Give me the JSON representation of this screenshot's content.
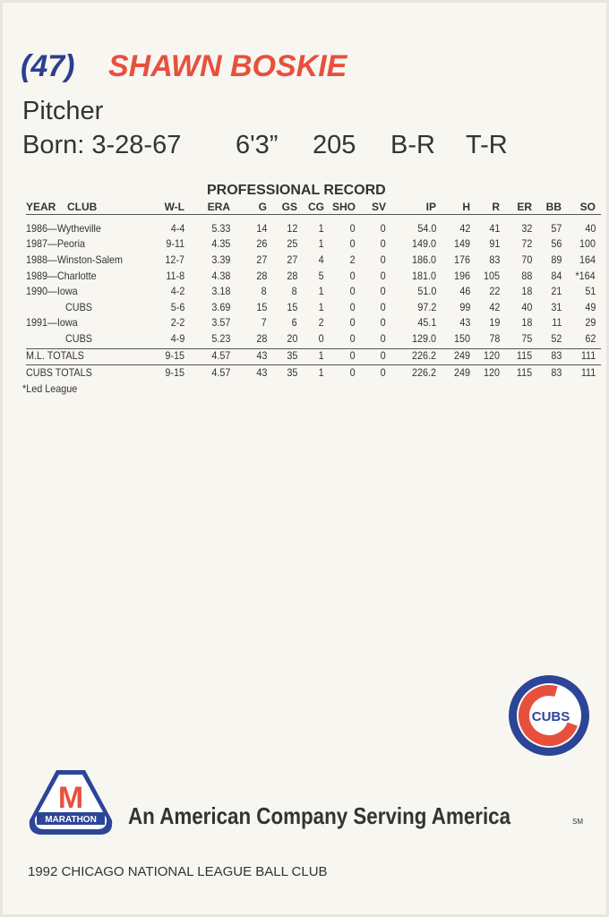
{
  "header": {
    "number": "(47)",
    "name": "SHAWN BOSKIE",
    "position": "Pitcher",
    "born": "Born: 3-28-67",
    "height": "6'3”",
    "weight": "205",
    "bats": "B-R",
    "throws": "T-R"
  },
  "table": {
    "title": "PROFESSIONAL RECORD",
    "headers": [
      "YEAR",
      "CLUB",
      "W-L",
      "ERA",
      "G",
      "GS",
      "CG",
      "SHO",
      "SV",
      "IP",
      "H",
      "R",
      "ER",
      "BB",
      "SO"
    ],
    "rows": [
      [
        "1986—Wytheville",
        "4-4",
        "5.33",
        "14",
        "12",
        "1",
        "0",
        "0",
        "54.0",
        "42",
        "41",
        "32",
        "57",
        "40"
      ],
      [
        "1987—Peoria",
        "9-11",
        "4.35",
        "26",
        "25",
        "1",
        "0",
        "0",
        "149.0",
        "149",
        "91",
        "72",
        "56",
        "100"
      ],
      [
        "1988—Winston-Salem",
        "12-7",
        "3.39",
        "27",
        "27",
        "4",
        "2",
        "0",
        "186.0",
        "176",
        "83",
        "70",
        "89",
        "164"
      ],
      [
        "1989—Charlotte",
        "11-8",
        "4.38",
        "28",
        "28",
        "5",
        "0",
        "0",
        "181.0",
        "196",
        "105",
        "88",
        "84",
        "*164"
      ],
      [
        "1990—Iowa",
        "4-2",
        "3.18",
        "8",
        "8",
        "1",
        "0",
        "0",
        "51.0",
        "46",
        "22",
        "18",
        "21",
        "51"
      ],
      [
        "CUBS",
        "5-6",
        "3.69",
        "15",
        "15",
        "1",
        "0",
        "0",
        "97.2",
        "99",
        "42",
        "40",
        "31",
        "49"
      ],
      [
        "1991—Iowa",
        "2-2",
        "3.57",
        "7",
        "6",
        "2",
        "0",
        "0",
        "45.1",
        "43",
        "19",
        "18",
        "11",
        "29"
      ],
      [
        "CUBS",
        "4-9",
        "5.23",
        "28",
        "20",
        "0",
        "0",
        "0",
        "129.0",
        "150",
        "78",
        "75",
        "52",
        "62"
      ]
    ],
    "totals": [
      [
        "M.L. TOTALS",
        "9-15",
        "4.57",
        "43",
        "35",
        "1",
        "0",
        "0",
        "226.2",
        "249",
        "120",
        "115",
        "83",
        "111"
      ],
      [
        "CUBS TOTALS",
        "9-15",
        "4.57",
        "43",
        "35",
        "1",
        "0",
        "0",
        "226.2",
        "249",
        "120",
        "115",
        "83",
        "111"
      ]
    ],
    "footnote": "*Led League"
  },
  "logos": {
    "cubs": "CUBS",
    "marathon_letter": "M",
    "marathon": "MARATHON"
  },
  "slogan": "An American Company Serving America",
  "slogan_mark": "SM",
  "footer": "1992 CHICAGO NATIONAL LEAGUE BALL CLUB"
}
